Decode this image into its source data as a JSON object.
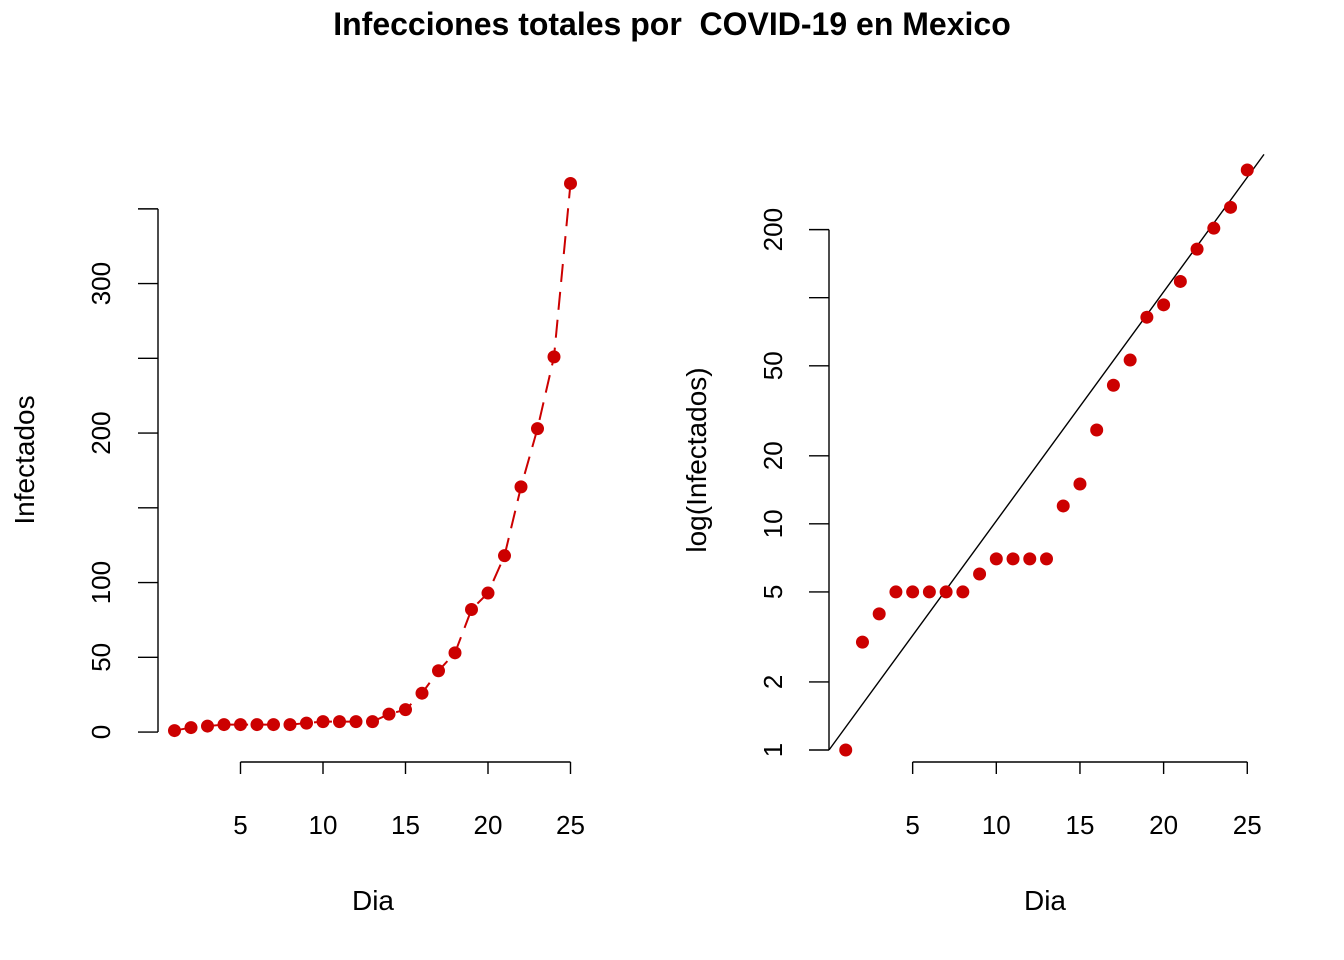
{
  "chart_data": {
    "title": "Infecciones totales por  COVID-19 en Mexico",
    "colors": {
      "points": "#cc0000",
      "linear_line": "#cc0000",
      "fit_line": "#000000",
      "axes": "#000000"
    },
    "panels": [
      {
        "id": "linear",
        "type": "scatter",
        "xlabel": "Dia",
        "ylabel": "Infectados",
        "x_ticks": [
          5,
          10,
          15,
          20,
          25
        ],
        "y_ticks": [
          0,
          50,
          100,
          150,
          200,
          250,
          300,
          350
        ],
        "y_tick_labels": [
          "0",
          "50",
          "100",
          "",
          "200",
          "",
          "300",
          ""
        ],
        "xlim": [
          0,
          26
        ],
        "ylim": [
          -12,
          376
        ],
        "y_scale": "linear",
        "connecting_line": "dashed-segments",
        "x": [
          1,
          2,
          3,
          4,
          5,
          6,
          7,
          8,
          9,
          10,
          11,
          12,
          13,
          14,
          15,
          16,
          17,
          18,
          19,
          20,
          21,
          22,
          23,
          24,
          25
        ],
        "y": [
          1,
          3,
          4,
          5,
          5,
          5,
          5,
          5,
          6,
          7,
          7,
          7,
          7,
          12,
          15,
          26,
          41,
          53,
          82,
          93,
          118,
          164,
          203,
          251,
          367
        ]
      },
      {
        "id": "log",
        "type": "scatter",
        "xlabel": "Dia",
        "ylabel": "log(Infectados)",
        "x_ticks": [
          5,
          10,
          15,
          20,
          25
        ],
        "y_ticks": [
          1,
          2,
          5,
          10,
          20,
          50,
          100,
          200
        ],
        "y_tick_labels": [
          "1",
          "2",
          "5",
          "10",
          "20",
          "50",
          "",
          "200"
        ],
        "xlim": [
          0,
          26
        ],
        "ylim": [
          1,
          367
        ],
        "y_scale": "log",
        "fit_line": {
          "intercept_at_x0": 1.0,
          "growth_per_day": 1.2627
        },
        "x": [
          1,
          2,
          3,
          4,
          5,
          6,
          7,
          8,
          9,
          10,
          11,
          12,
          13,
          14,
          15,
          16,
          17,
          18,
          19,
          20,
          21,
          22,
          23,
          24,
          25
        ],
        "y": [
          1,
          3,
          4,
          5,
          5,
          5,
          5,
          5,
          6,
          7,
          7,
          7,
          7,
          12,
          15,
          26,
          41,
          53,
          82,
          93,
          118,
          164,
          203,
          251,
          367
        ]
      }
    ]
  }
}
